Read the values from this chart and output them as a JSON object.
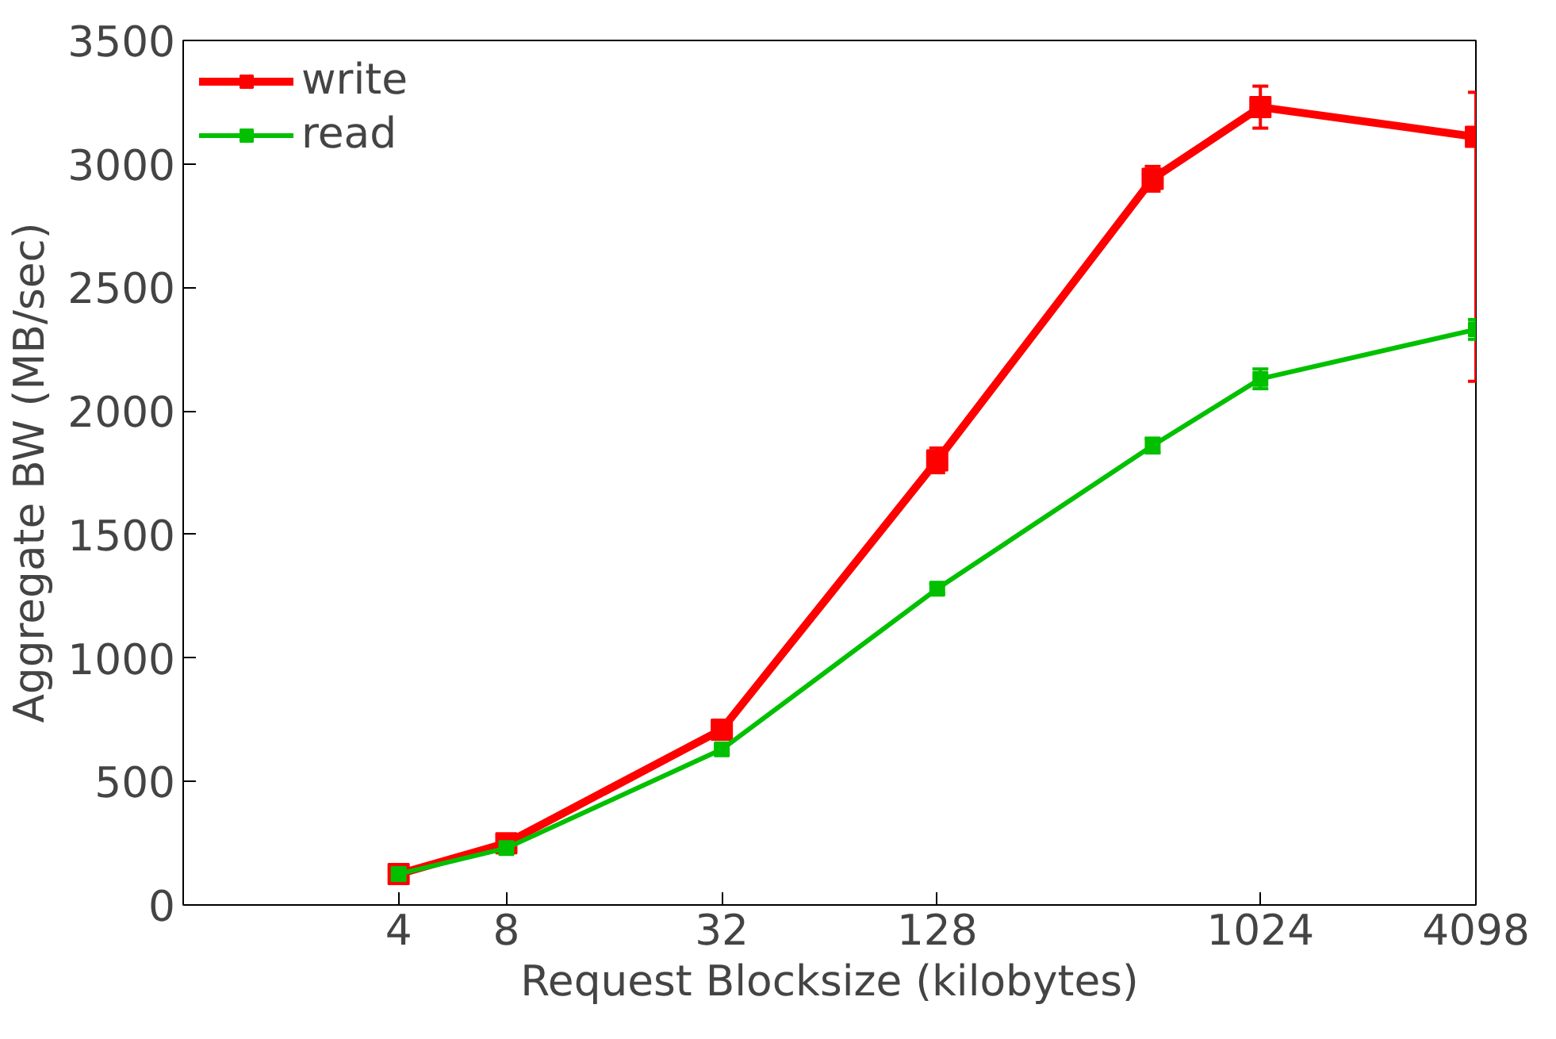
{
  "chart_data": {
    "type": "line",
    "xlabel": "Request Blocksize (kilobytes)",
    "ylabel": "Aggregate BW (MB/sec)",
    "log": "x",
    "x": [
      4,
      8,
      32,
      128,
      512,
      1024,
      4098
    ],
    "xlim": [
      1,
      4098
    ],
    "xticks": [
      4,
      8,
      32,
      128,
      1024,
      4098
    ],
    "ylim": [
      0,
      3500
    ],
    "yticks": [
      0,
      500,
      1000,
      1500,
      2000,
      2500,
      3000,
      3500
    ],
    "grid": false,
    "legend": "top left",
    "marker": "square",
    "line_style": "solid",
    "series": [
      {
        "name": "write",
        "color": "#ff0000",
        "values": [
          125,
          250,
          710,
          1800,
          2940,
          3230,
          3110
        ],
        "errors": [
          null,
          20,
          30,
          50,
          50,
          85,
          [
            2120,
            3290
          ]
        ]
      },
      {
        "name": "read",
        "color": "#00c000",
        "values": [
          125,
          230,
          630,
          1280,
          1860,
          2130,
          2330
        ],
        "errors": [
          null,
          20,
          20,
          20,
          30,
          40,
          40
        ]
      }
    ]
  }
}
